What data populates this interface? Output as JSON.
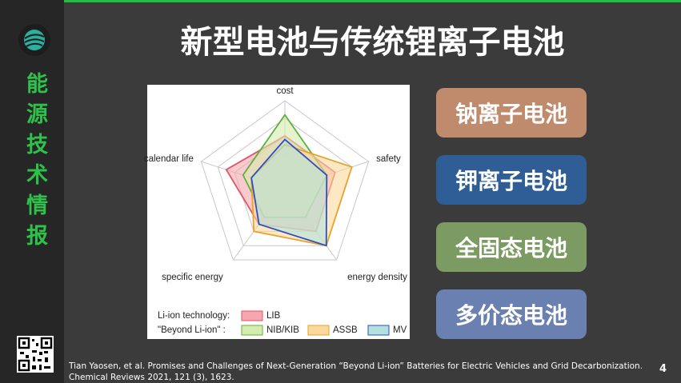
{
  "slide": {
    "sidebar_label": "能源技术情报",
    "title": "新型电池与传统锂离子电池",
    "buttons": [
      "钠离子电池",
      "钾离子电池",
      "全固态电池",
      "多价态电池"
    ],
    "citation": [
      "Tian Yaosen, et al. Promises and Challenges of Next-Generation “Beyond Li-ion” Batteries for Electric Vehicles and Grid Decarbonization.",
      "Chemical Reviews 2021, 121 (3), 1623."
    ],
    "page_number": "4"
  },
  "chart_data": {
    "type": "radar",
    "categories": [
      "cost",
      "safety",
      "energy density",
      "specific energy",
      "calendar life"
    ],
    "rlim": [
      0,
      5
    ],
    "rticks": [
      1,
      2,
      3,
      4,
      5
    ],
    "grid": true,
    "legend_groups": [
      "Li-ion technology:",
      "\"Beyond Li-ion\" :"
    ],
    "series": [
      {
        "name": "LIB",
        "color": "#e05565",
        "fill": "#f5a6ae",
        "values": [
          3,
          3,
          3,
          2.5,
          3.5
        ]
      },
      {
        "name": "NIB/KIB",
        "color": "#5fb040",
        "fill": "#d6ecae",
        "values": [
          4.2,
          2.5,
          2,
          2,
          2.5
        ]
      },
      {
        "name": "ASSB",
        "color": "#e8a328",
        "fill": "#fbd89c",
        "values": [
          2.5,
          4,
          4,
          3,
          2
        ]
      },
      {
        "name": "MV",
        "color": "#2f4fc0",
        "fill": "#b3e2dd",
        "values": [
          2.8,
          2.5,
          4,
          2.5,
          2
        ]
      }
    ]
  }
}
